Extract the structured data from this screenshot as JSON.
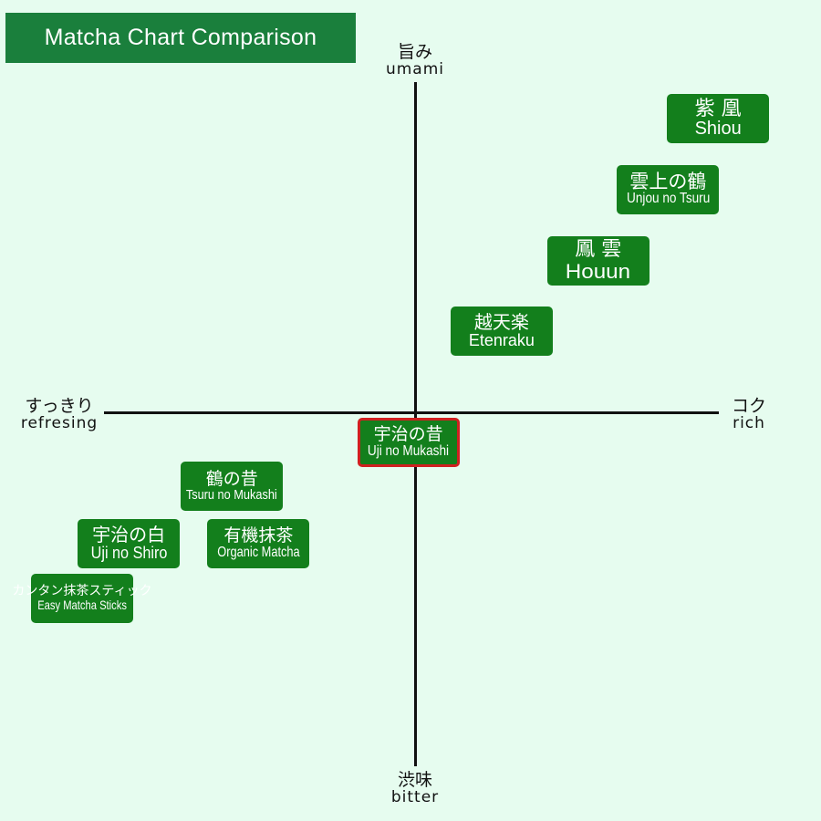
{
  "title": "Matcha Chart Comparison",
  "axes": {
    "top": {
      "jp": "旨み",
      "en": "umami"
    },
    "bottom": {
      "jp": "渋味",
      "en": "bitter"
    },
    "left": {
      "jp": "すっきり",
      "en": "refresing"
    },
    "right": {
      "jp": "コク",
      "en": "rich"
    }
  },
  "chart_data": {
    "type": "scatter",
    "title": "Matcha Chart Comparison",
    "x_axis": {
      "negative": "すっきり refresing",
      "positive": "コク rich"
    },
    "y_axis": {
      "negative": "渋味 bitter",
      "positive": "旨み umami"
    },
    "grid": false,
    "points": [
      {
        "jp": "紫 凰",
        "en": "Shiou",
        "x": 0.91,
        "y": 0.87,
        "highlight": false
      },
      {
        "jp": "雲上の鶴",
        "en": "Unjou no Tsuru",
        "x": 0.76,
        "y": 0.66,
        "highlight": false
      },
      {
        "jp": "鳳 雲",
        "en": "Houun",
        "x": 0.55,
        "y": 0.45,
        "highlight": false
      },
      {
        "jp": "越天楽",
        "en": "Etenraku",
        "x": 0.26,
        "y": 0.24,
        "highlight": false
      },
      {
        "jp": "宇治の昔",
        "en": "Uji no Mukashi",
        "x": -0.02,
        "y": -0.09,
        "highlight": true
      },
      {
        "jp": "鶴の昔",
        "en": "Tsuru no Mukashi",
        "x": -0.55,
        "y": -0.22,
        "highlight": false
      },
      {
        "jp": "宇治の白",
        "en": "Uji no Shiro",
        "x": -0.86,
        "y": -0.39,
        "highlight": false
      },
      {
        "jp": "有機抹茶",
        "en": "Organic Matcha",
        "x": -0.47,
        "y": -0.39,
        "highlight": false
      },
      {
        "jp": "カンタン抹茶スティック",
        "en": "Easy Matcha Sticks",
        "x": -1.0,
        "y": -0.55,
        "highlight": false
      }
    ]
  }
}
